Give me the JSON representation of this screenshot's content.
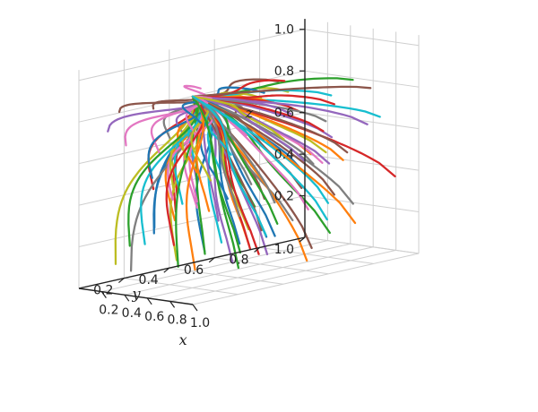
{
  "chart_data": {
    "type": "line",
    "projection": "3d",
    "title": "",
    "xlabel": "x",
    "ylabel": "y",
    "zlabel": "z",
    "xlim": [
      0,
      1
    ],
    "ylim": [
      0,
      1
    ],
    "zlim": [
      0,
      1
    ],
    "x_ticks": [
      "0.2",
      "0.4",
      "0.6",
      "0.8",
      "1.0"
    ],
    "y_ticks": [
      "0.2",
      "0.4",
      "0.6",
      "0.8",
      "1.0"
    ],
    "z_ticks": [
      "0.2",
      "0.4",
      "0.6",
      "0.8",
      "1.0"
    ],
    "grid": true,
    "legend": "none",
    "apex": {
      "x": 1.0,
      "y": 0.0,
      "z": 1.0
    },
    "palette": [
      "#1f77b4",
      "#ff7f0e",
      "#2ca02c",
      "#d62728",
      "#9467bd",
      "#8c564b",
      "#e377c2",
      "#7f7f7f",
      "#bcbd22",
      "#17becf"
    ],
    "series_count": 110,
    "series_description_values": "Each trajectory starts at a point (x0, y0, z0) and converges to the apex (1.0, 0.0, 1.0)."
  }
}
